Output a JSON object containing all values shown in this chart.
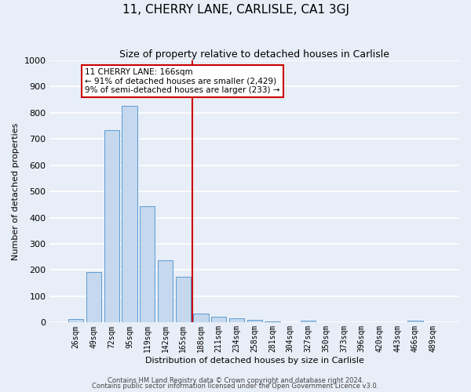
{
  "title": "11, CHERRY LANE, CARLISLE, CA1 3GJ",
  "subtitle": "Size of property relative to detached houses in Carlisle",
  "xlabel": "Distribution of detached houses by size in Carlisle",
  "ylabel": "Number of detached properties",
  "bin_labels": [
    "26sqm",
    "49sqm",
    "72sqm",
    "95sqm",
    "119sqm",
    "142sqm",
    "165sqm",
    "188sqm",
    "211sqm",
    "234sqm",
    "258sqm",
    "281sqm",
    "304sqm",
    "327sqm",
    "350sqm",
    "373sqm",
    "396sqm",
    "420sqm",
    "443sqm",
    "466sqm",
    "489sqm"
  ],
  "bar_values": [
    12,
    192,
    733,
    825,
    443,
    238,
    175,
    33,
    22,
    17,
    10,
    5,
    0,
    7,
    0,
    0,
    0,
    0,
    0,
    8,
    0
  ],
  "bar_color": "#c5d8ed",
  "bar_edge_color": "#5b9bd5",
  "vline_x_index": 6.5,
  "annotation_title": "11 CHERRY LANE: 166sqm",
  "annotation_line1": "← 91% of detached houses are smaller (2,429)",
  "annotation_line2": "9% of semi-detached houses are larger (233) →",
  "annotation_box_color": "#ffffff",
  "annotation_box_edge_color": "#cc0000",
  "vline_color": "#cc0000",
  "ylim": [
    0,
    1000
  ],
  "yticks": [
    0,
    100,
    200,
    300,
    400,
    500,
    600,
    700,
    800,
    900,
    1000
  ],
  "footer1": "Contains HM Land Registry data © Crown copyright and database right 2024.",
  "footer2": "Contains public sector information licensed under the Open Government Licence v3.0.",
  "background_color": "#e8eef7",
  "grid_color": "#ffffff",
  "title_fontsize": 11,
  "subtitle_fontsize": 9,
  "ylabel_fontsize": 8,
  "xlabel_fontsize": 8,
  "ytick_fontsize": 8,
  "xtick_fontsize": 7
}
